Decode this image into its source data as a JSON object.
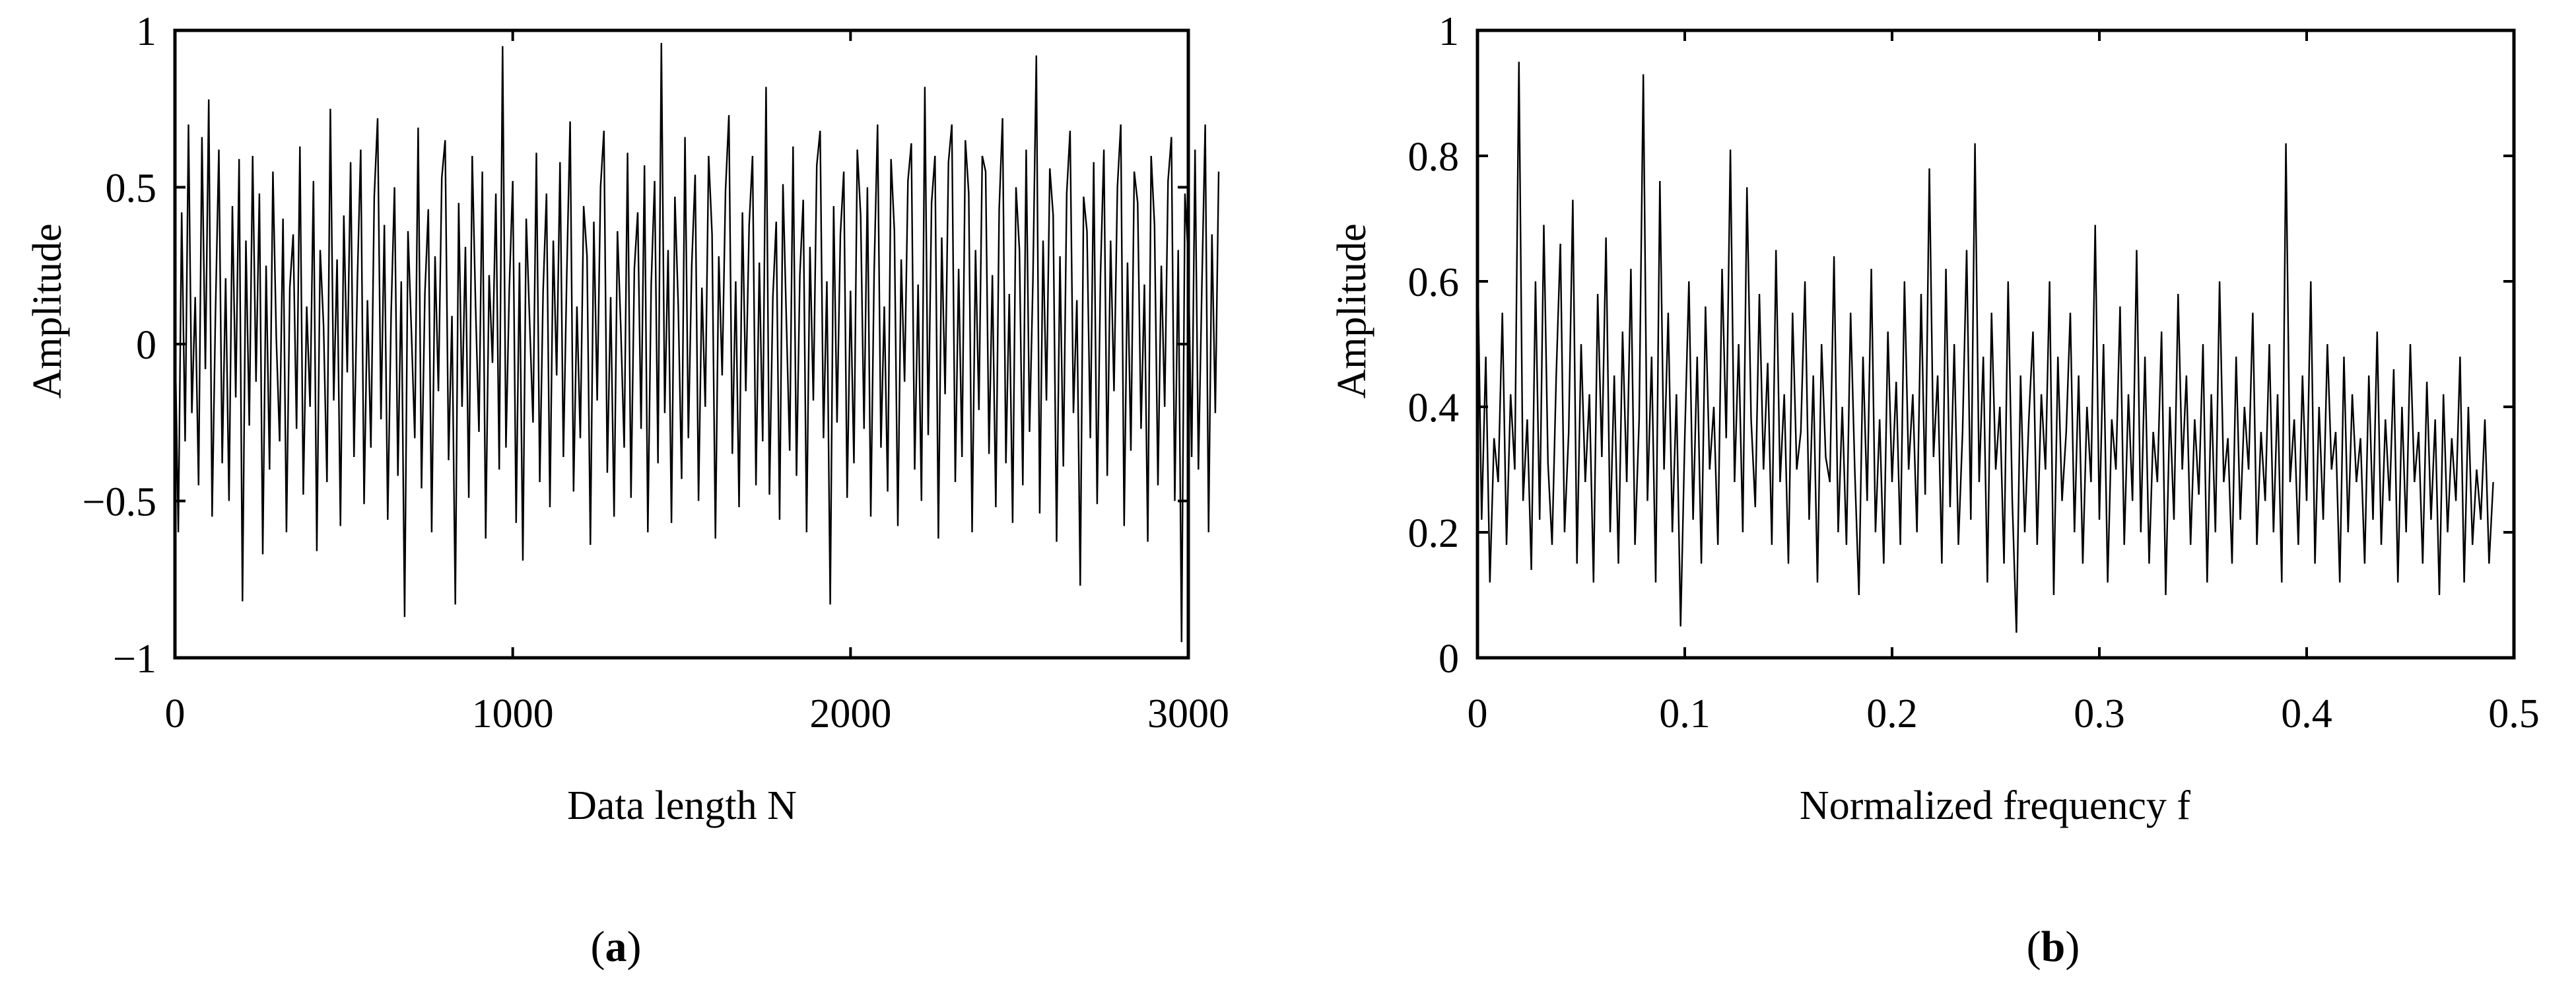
{
  "figure": {
    "panels": [
      {
        "label_open": "(",
        "label": "a",
        "label_close": ")"
      },
      {
        "label_open": "(",
        "label": "b",
        "label_close": ")"
      }
    ]
  },
  "chart_data": [
    {
      "type": "line",
      "title": "",
      "xlabel": "Data length N",
      "ylabel": "Amplitude",
      "xlim": [
        0,
        3000
      ],
      "ylim": [
        -1,
        1
      ],
      "x_ticks": [
        0,
        1000,
        2000,
        3000
      ],
      "x_tick_labels": [
        "0",
        "1000",
        "2000",
        "3000"
      ],
      "y_ticks": [
        -1,
        -0.5,
        0,
        0.5,
        1
      ],
      "y_tick_labels": [
        "−1",
        "−0.5",
        "0",
        "0.5",
        "1"
      ],
      "grid": false,
      "series": [
        {
          "x_start": 0,
          "x_step": 10,
          "values": [
            0.05,
            -0.6,
            0.42,
            -0.31,
            0.7,
            -0.22,
            0.15,
            -0.45,
            0.66,
            -0.08,
            0.78,
            -0.55,
            0.1,
            0.62,
            -0.38,
            0.21,
            -0.5,
            0.44,
            -0.17,
            0.59,
            -0.82,
            0.33,
            -0.26,
            0.6,
            -0.12,
            0.48,
            -0.67,
            0.25,
            -0.4,
            0.55,
            0.02,
            -0.31,
            0.4,
            -0.6,
            0.18,
            0.35,
            -0.27,
            0.63,
            -0.48,
            0.12,
            -0.2,
            0.52,
            -0.66,
            0.3,
            0.06,
            -0.44,
            0.75,
            -0.18,
            0.27,
            -0.58,
            0.41,
            -0.09,
            0.58,
            -0.36,
            0.2,
            0.62,
            -0.51,
            0.14,
            -0.33,
            0.47,
            0.72,
            -0.24,
            0.38,
            -0.56,
            0.1,
            0.5,
            -0.42,
            0.2,
            -0.87,
            0.36,
            0.04,
            -0.3,
            0.69,
            -0.46,
            0.16,
            0.43,
            -0.6,
            0.28,
            -0.15,
            0.53,
            0.65,
            -0.37,
            0.09,
            -0.83,
            0.45,
            -0.2,
            0.31,
            -0.49,
            0.6,
            0.12,
            -0.28,
            0.55,
            -0.62,
            0.22,
            -0.06,
            0.48,
            -0.4,
            0.95,
            -0.33,
            0.18,
            0.52,
            -0.57,
            0.26,
            -0.69,
            0.4,
            0.07,
            -0.25,
            0.61,
            -0.44,
            0.17,
            0.48,
            -0.52,
            0.33,
            -0.1,
            0.58,
            -0.36,
            0.22,
            0.71,
            -0.47,
            0.12,
            -0.3,
            0.44,
            0.28,
            -0.64,
            0.39,
            -0.18,
            0.5,
            0.68,
            -0.41,
            0.15,
            -0.55,
            0.36,
            0.05,
            -0.33,
            0.61,
            -0.49,
            0.24,
            0.42,
            -0.27,
            0.57,
            -0.6,
            0.19,
            0.52,
            -0.38,
            0.96,
            -0.22,
            0.3,
            -0.57,
            0.47,
            0.12,
            -0.43,
            0.66,
            -0.3,
            0.25,
            0.54,
            -0.5,
            0.18,
            -0.2,
            0.6,
            0.35,
            -0.62,
            0.28,
            -0.1,
            0.49,
            0.73,
            -0.35,
            0.2,
            -0.52,
            0.42,
            -0.15,
            0.38,
            0.6,
            -0.45,
            0.26,
            -0.31,
            0.82,
            -0.48,
            0.15,
            0.39,
            -0.56,
            0.51,
            0.08,
            -0.34,
            0.63,
            -0.42,
            0.22,
            0.46,
            -0.6,
            0.31,
            -0.18,
            0.57,
            0.68,
            -0.3,
            0.2,
            -0.83,
            0.44,
            -0.25,
            0.35,
            0.55,
            -0.49,
            0.17,
            -0.38,
            0.62,
            0.41,
            -0.27,
            0.5,
            -0.55,
            0.23,
            0.7,
            -0.33,
            0.12,
            -0.47,
            0.59,
            0.36,
            -0.58,
            0.27,
            -0.12,
            0.52,
            0.64,
            -0.4,
            0.19,
            -0.5,
            0.82,
            -0.29,
            0.45,
            0.6,
            -0.62,
            0.34,
            -0.16,
            0.58,
            0.7,
            -0.44,
            0.24,
            -0.36,
            0.65,
            0.48,
            -0.6,
            0.3,
            -0.21,
            0.6,
            0.55,
            -0.35,
            0.22,
            -0.52,
            0.43,
            0.72,
            -0.38,
            0.16,
            -0.57,
            0.5,
            0.3,
            -0.45,
            0.62,
            -0.28,
            0.2,
            0.92,
            -0.54,
            0.33,
            -0.18,
            0.56,
            0.41,
            -0.63,
            0.28,
            -0.39,
            0.48,
            0.68,
            -0.22,
            0.14,
            -0.77,
            0.47,
            0.36,
            -0.3,
            0.58,
            -0.51,
            0.22,
            0.62,
            -0.42,
            0.33,
            -0.15,
            0.5,
            0.7,
            -0.58,
            0.26,
            -0.34,
            0.55,
            0.45,
            -0.27,
            0.19,
            -0.63,
            0.6,
            0.38,
            -0.45,
            0.25,
            -0.2,
            0.52,
            0.66,
            -0.5,
            0.3,
            -0.95,
            0.48,
            0.27,
            -0.36,
            0.62,
            -0.4,
            0.18,
            0.7,
            -0.6,
            0.35,
            -0.22,
            0.55
          ]
        }
      ]
    },
    {
      "type": "line",
      "title": "",
      "xlabel": "Normalized frequency f",
      "ylabel": "Amplitude",
      "xlim": [
        0,
        0.5
      ],
      "ylim": [
        0,
        1
      ],
      "x_ticks": [
        0,
        0.1,
        0.2,
        0.3,
        0.4,
        0.5
      ],
      "x_tick_labels": [
        "0",
        "0.1",
        "0.2",
        "0.3",
        "0.4",
        "0.5"
      ],
      "y_ticks": [
        0,
        0.2,
        0.4,
        0.6,
        0.8,
        1
      ],
      "y_tick_labels": [
        "0",
        "0.2",
        "0.4",
        "0.6",
        "0.8",
        "1"
      ],
      "grid": false,
      "series": [
        {
          "x_start": 0,
          "x_step": 0.002,
          "values": [
            0.65,
            0.22,
            0.48,
            0.12,
            0.35,
            0.28,
            0.55,
            0.18,
            0.42,
            0.3,
            0.95,
            0.25,
            0.38,
            0.14,
            0.6,
            0.22,
            0.69,
            0.31,
            0.18,
            0.45,
            0.66,
            0.2,
            0.36,
            0.73,
            0.15,
            0.5,
            0.28,
            0.42,
            0.12,
            0.58,
            0.32,
            0.67,
            0.2,
            0.45,
            0.15,
            0.52,
            0.28,
            0.62,
            0.18,
            0.38,
            0.93,
            0.25,
            0.48,
            0.12,
            0.76,
            0.3,
            0.55,
            0.2,
            0.42,
            0.05,
            0.35,
            0.6,
            0.22,
            0.48,
            0.15,
            0.56,
            0.3,
            0.4,
            0.18,
            0.62,
            0.35,
            0.81,
            0.28,
            0.5,
            0.2,
            0.75,
            0.38,
            0.24,
            0.58,
            0.3,
            0.47,
            0.18,
            0.65,
            0.28,
            0.42,
            0.15,
            0.55,
            0.3,
            0.36,
            0.6,
            0.22,
            0.45,
            0.12,
            0.5,
            0.32,
            0.28,
            0.64,
            0.2,
            0.4,
            0.18,
            0.55,
            0.3,
            0.1,
            0.48,
            0.25,
            0.62,
            0.2,
            0.38,
            0.15,
            0.52,
            0.28,
            0.44,
            0.18,
            0.6,
            0.3,
            0.42,
            0.2,
            0.58,
            0.26,
            0.78,
            0.32,
            0.45,
            0.15,
            0.62,
            0.24,
            0.5,
            0.18,
            0.36,
            0.65,
            0.22,
            0.82,
            0.28,
            0.48,
            0.12,
            0.55,
            0.3,
            0.4,
            0.15,
            0.6,
            0.25,
            0.04,
            0.45,
            0.2,
            0.38,
            0.52,
            0.18,
            0.42,
            0.3,
            0.6,
            0.1,
            0.48,
            0.25,
            0.36,
            0.55,
            0.2,
            0.45,
            0.15,
            0.4,
            0.28,
            0.69,
            0.22,
            0.5,
            0.12,
            0.38,
            0.3,
            0.56,
            0.18,
            0.42,
            0.25,
            0.65,
            0.2,
            0.48,
            0.15,
            0.36,
            0.28,
            0.52,
            0.1,
            0.4,
            0.22,
            0.58,
            0.3,
            0.45,
            0.18,
            0.38,
            0.26,
            0.5,
            0.12,
            0.42,
            0.2,
            0.6,
            0.28,
            0.35,
            0.15,
            0.48,
            0.22,
            0.4,
            0.3,
            0.55,
            0.18,
            0.36,
            0.25,
            0.5,
            0.2,
            0.42,
            0.12,
            0.82,
            0.28,
            0.38,
            0.18,
            0.45,
            0.25,
            0.6,
            0.15,
            0.4,
            0.22,
            0.5,
            0.3,
            0.36,
            0.12,
            0.48,
            0.2,
            0.42,
            0.28,
            0.35,
            0.15,
            0.45,
            0.22,
            0.52,
            0.18,
            0.38,
            0.25,
            0.46,
            0.12,
            0.4,
            0.2,
            0.5,
            0.28,
            0.36,
            0.15,
            0.44,
            0.22,
            0.38,
            0.1,
            0.42,
            0.2,
            0.35,
            0.25,
            0.48,
            0.12,
            0.4,
            0.18,
            0.3,
            0.22,
            0.38,
            0.15,
            0.28
          ]
        }
      ]
    }
  ]
}
